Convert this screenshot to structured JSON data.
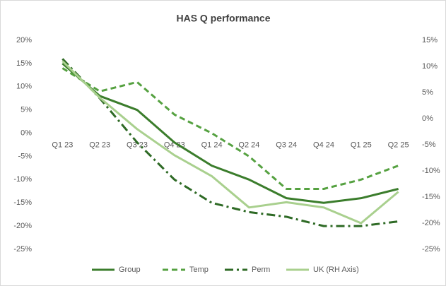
{
  "chart_data": {
    "type": "line",
    "title": "HAS Q performance",
    "categories": [
      "Q1 23",
      "Q2 23",
      "Q3 23",
      "Q4 23",
      "Q1 24",
      "Q2 24",
      "Q3 24",
      "Q4 24",
      "Q1 25",
      "Q2 25"
    ],
    "series": [
      {
        "name": "Group",
        "color": "#3b7d2c",
        "dash": "solid",
        "values": [
          15,
          8,
          5,
          -2,
          -7,
          -10,
          -14,
          -15,
          -14,
          -12
        ]
      },
      {
        "name": "Temp",
        "color": "#55a140",
        "dash": "dash",
        "values": [
          14,
          9,
          11,
          4,
          0,
          -5,
          -12,
          -12,
          -10,
          -7
        ]
      },
      {
        "name": "Perm",
        "color": "#2e6a25",
        "dash": "dashdot",
        "values": [
          16,
          7.5,
          -2,
          -10,
          -15,
          -17,
          -18,
          -20,
          -20,
          -19
        ]
      },
      {
        "name": "UK (RH Axis)",
        "color": "#a9d08e",
        "dash": "solid",
        "axis": "y2",
        "values": [
          11,
          4,
          -2,
          -7,
          -11,
          -17,
          -16,
          -17,
          -20,
          -14
        ]
      }
    ],
    "ylim": [
      -25,
      20
    ],
    "yticks": [
      {
        "value": 20,
        "label": "20%"
      },
      {
        "value": 15,
        "label": "15%"
      },
      {
        "value": 10,
        "label": "10%"
      },
      {
        "value": 5,
        "label": "5%"
      },
      {
        "value": 0,
        "label": "0%"
      },
      {
        "value": -5,
        "label": "-5%"
      },
      {
        "value": -10,
        "label": "-10%"
      },
      {
        "value": -15,
        "label": "-15%"
      },
      {
        "value": -20,
        "label": "-20%"
      },
      {
        "value": -25,
        "label": "-25%"
      }
    ],
    "y2lim": [
      -25,
      15
    ],
    "y2ticks": [
      {
        "value": 15,
        "label": "15%"
      },
      {
        "value": 10,
        "label": "10%"
      },
      {
        "value": 5,
        "label": "5%"
      },
      {
        "value": 0,
        "label": "0%"
      },
      {
        "value": -5,
        "label": "-5%"
      },
      {
        "value": -10,
        "label": "-10%"
      },
      {
        "value": -15,
        "label": "-15%"
      },
      {
        "value": -20,
        "label": "-20%"
      },
      {
        "value": -25,
        "label": "-25%"
      }
    ],
    "grid": false,
    "legend": "bottom"
  }
}
